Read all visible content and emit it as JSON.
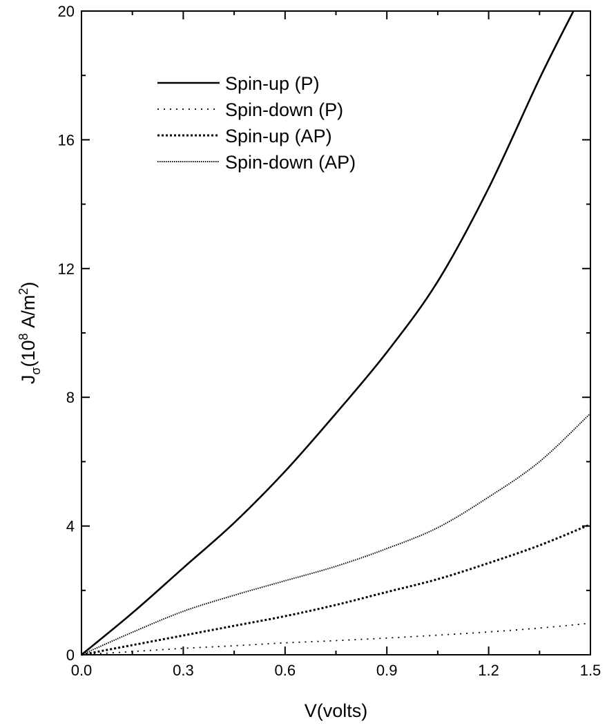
{
  "chart_data": {
    "type": "line",
    "xlabel": "V(volts)",
    "ylabel": {
      "base": "J",
      "sub": "σ",
      "pre": "(10",
      "sup_exp": "8",
      "mid": " A/m",
      "sup_unit": "2",
      "post": ")"
    },
    "xlim": [
      0,
      1.5
    ],
    "ylim": [
      0,
      20
    ],
    "xticks": [
      0.0,
      0.3,
      0.6,
      0.9,
      1.2,
      1.5
    ],
    "xtick_labels": [
      "0.0",
      "0.3",
      "0.6",
      "0.9",
      "1.2",
      "1.5"
    ],
    "yticks": [
      0,
      4,
      8,
      12,
      16,
      20
    ],
    "ytick_labels": [
      "0",
      "4",
      "8",
      "12",
      "16",
      "20"
    ],
    "grid": false,
    "legend_position": "top-left",
    "series": [
      {
        "name": "Spin-up (P)",
        "style": "solid",
        "x": [
          0,
          0.15,
          0.3,
          0.45,
          0.6,
          0.75,
          0.9,
          1.05,
          1.2,
          1.35,
          1.45
        ],
        "y": [
          0,
          1.3,
          2.7,
          4.1,
          5.7,
          7.5,
          9.4,
          11.6,
          14.5,
          17.9,
          20.0
        ]
      },
      {
        "name": "Spin-down (P)",
        "style": "dotted-sparse",
        "x": [
          0,
          0.15,
          0.3,
          0.45,
          0.6,
          0.75,
          0.9,
          1.05,
          1.2,
          1.35,
          1.5
        ],
        "y": [
          0,
          0.1,
          0.2,
          0.28,
          0.37,
          0.44,
          0.52,
          0.61,
          0.71,
          0.83,
          0.98
        ]
      },
      {
        "name": "Spin-up (AP)",
        "style": "dashed",
        "x": [
          0,
          0.15,
          0.3,
          0.45,
          0.6,
          0.75,
          0.9,
          1.05,
          1.2,
          1.35,
          1.5
        ],
        "y": [
          0,
          0.3,
          0.6,
          0.9,
          1.2,
          1.55,
          1.95,
          2.35,
          2.85,
          3.4,
          4.05
        ]
      },
      {
        "name": "Spin-down (AP)",
        "style": "dotted-dense",
        "x": [
          0,
          0.15,
          0.3,
          0.45,
          0.6,
          0.75,
          0.9,
          1.05,
          1.2,
          1.35,
          1.5
        ],
        "y": [
          0,
          0.7,
          1.35,
          1.85,
          2.3,
          2.75,
          3.3,
          3.95,
          4.9,
          6.0,
          7.5
        ]
      }
    ]
  }
}
